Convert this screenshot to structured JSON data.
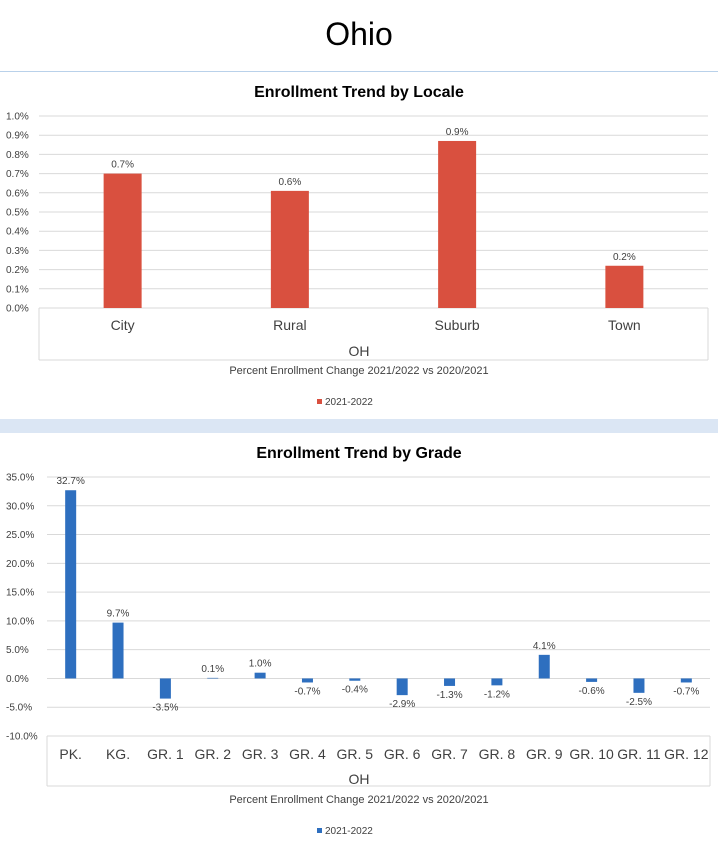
{
  "page": {
    "title": "Ohio"
  },
  "chart_data": [
    {
      "type": "bar",
      "title": "Enrollment Trend by Locale",
      "group_label": "OH",
      "xlabel": "Percent Enrollment Change 2021/2022 vs 2020/2021",
      "ylabel": "",
      "categories": [
        "City",
        "Rural",
        "Suburb",
        "Town"
      ],
      "series": [
        {
          "name": "2021-2022",
          "values": [
            0.007,
            0.0061,
            0.0087,
            0.0022
          ],
          "labels": [
            "0.7%",
            "0.6%",
            "0.9%",
            "0.2%"
          ]
        }
      ],
      "yticks": [
        "0.0%",
        "0.1%",
        "0.2%",
        "0.3%",
        "0.4%",
        "0.5%",
        "0.6%",
        "0.7%",
        "0.8%",
        "0.9%",
        "1.0%"
      ],
      "ylim": [
        0,
        0.01
      ],
      "grid": true,
      "legend": "bottom",
      "color": "#d9503f"
    },
    {
      "type": "bar",
      "title": "Enrollment Trend by Grade",
      "group_label": "OH",
      "xlabel": "Percent Enrollment Change 2021/2022 vs 2020/2021",
      "ylabel": "",
      "categories": [
        "PK.",
        "KG.",
        "GR. 1",
        "GR. 2",
        "GR. 3",
        "GR. 4",
        "GR. 5",
        "GR. 6",
        "GR. 7",
        "GR. 8",
        "GR. 9",
        "GR. 10",
        "GR. 11",
        "GR. 12"
      ],
      "series": [
        {
          "name": "2021-2022",
          "values": [
            0.327,
            0.097,
            -0.035,
            0.001,
            0.01,
            -0.007,
            -0.004,
            -0.029,
            -0.013,
            -0.012,
            0.041,
            -0.006,
            -0.025,
            -0.007
          ],
          "labels": [
            "32.7%",
            "9.7%",
            "-3.5%",
            "0.1%",
            "1.0%",
            "-0.7%",
            "-0.4%",
            "-2.9%",
            "-1.3%",
            "-1.2%",
            "4.1%",
            "-0.6%",
            "-2.5%",
            "-0.7%"
          ]
        }
      ],
      "yticks": [
        "-10.0%",
        "-5.0%",
        "0.0%",
        "5.0%",
        "10.0%",
        "15.0%",
        "20.0%",
        "25.0%",
        "30.0%",
        "35.0%"
      ],
      "ylim": [
        -0.1,
        0.35
      ],
      "grid": true,
      "legend": "bottom",
      "color": "#2e6fbf"
    }
  ]
}
